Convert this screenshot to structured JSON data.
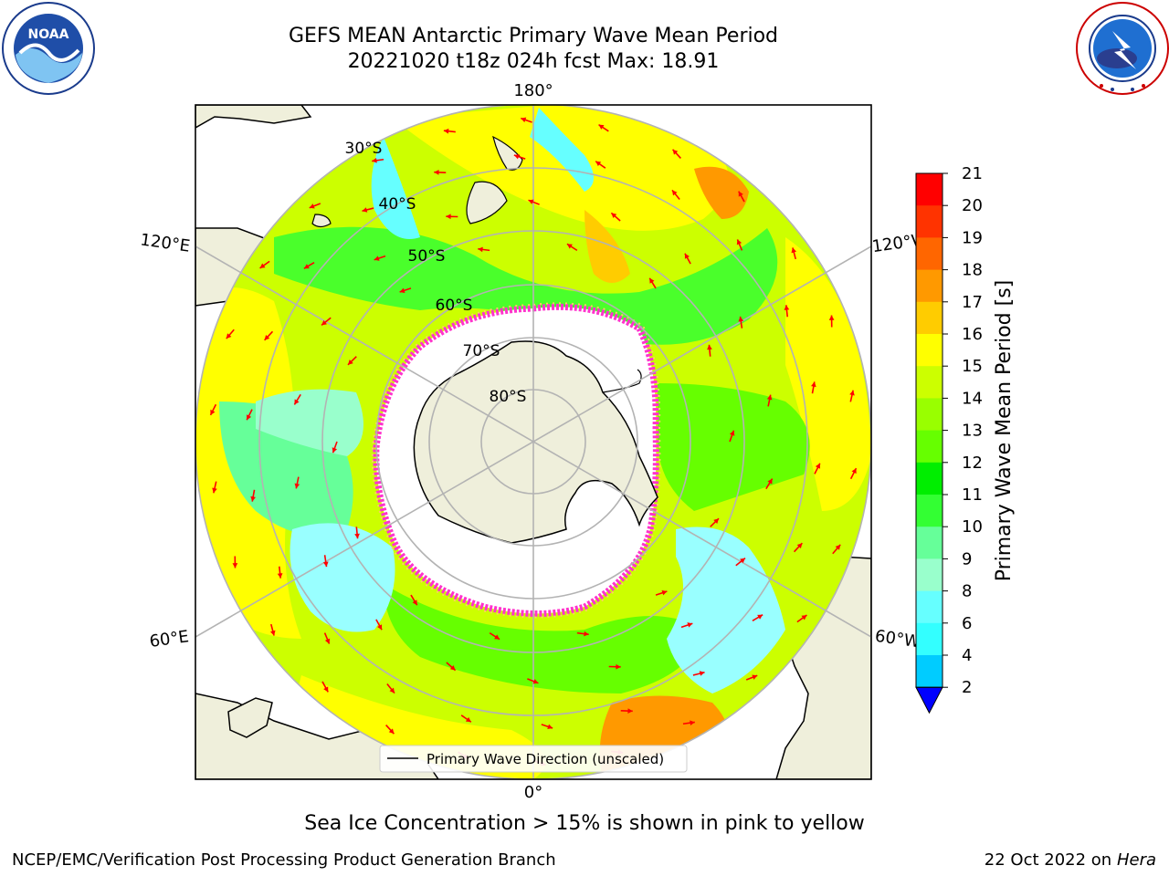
{
  "title": {
    "line1": "GEFS MEAN Antarctic Primary Wave Mean Period",
    "line2": "20221020 t18z 024h fcst   Max: 18.91"
  },
  "logos": {
    "noaa_text": "NOAA",
    "noaa_ring": "NATIONAL OCEANIC AND ATMOSPHERIC ADMINISTRATION · U.S. DEPARTMENT OF COMMERCE",
    "nws_ring": "NATIONAL WEATHER SERVICE"
  },
  "map": {
    "longitude_labels": [
      "180°",
      "120°E",
      "120°W",
      "60°E",
      "60°W",
      "0°"
    ],
    "latitude_labels": [
      "30°S",
      "40°S",
      "50°S",
      "60°S",
      "70°S",
      "80°S"
    ],
    "legend_label": "Primary Wave Direction (unscaled)",
    "arrow_color": "#ff0000",
    "sea_ice_edge_colors": [
      "#ff33cc",
      "#ffcc66"
    ]
  },
  "colorbar": {
    "label": "Primary Wave Mean Period [s]",
    "ticks": [
      "2",
      "4",
      "6",
      "8",
      "9",
      "10",
      "11",
      "12",
      "13",
      "14",
      "15",
      "16",
      "17",
      "18",
      "19",
      "20",
      "21"
    ],
    "colors": [
      "#0066ff",
      "#00ccff",
      "#33ffff",
      "#66ffff",
      "#99ffcc",
      "#66ff99",
      "#33ff33",
      "#00ee00",
      "#66ff00",
      "#99ff00",
      "#ccff00",
      "#ffff00",
      "#ffcc00",
      "#ff9900",
      "#ff6600",
      "#ff3300",
      "#ff0000"
    ],
    "under_color": "#0000ff"
  },
  "footer": {
    "note": "Sea Ice Concentration > 15% is shown in pink to yellow",
    "credit": "NCEP/EMC/Verification Post Processing Product Generation Branch",
    "date": "22 Oct 2022 on ",
    "host": "Hera"
  }
}
